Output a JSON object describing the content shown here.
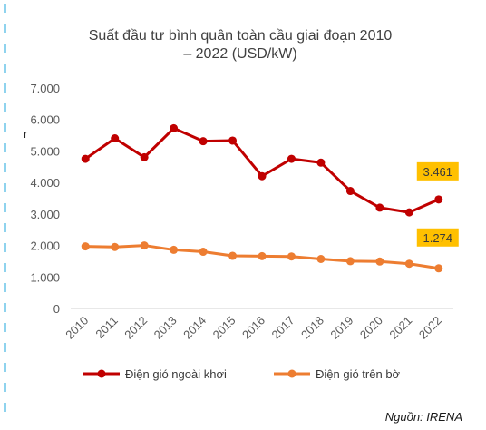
{
  "chart_data": {
    "type": "line",
    "title": "Suất đầu tư bình quân toàn cầu giai đoạn 2010\n– 2022 (USD/kW)",
    "x": [
      "2010",
      "2011",
      "2012",
      "2013",
      "2014",
      "2015",
      "2016",
      "2017",
      "2018",
      "2019",
      "2020",
      "2021",
      "2022"
    ],
    "ylim": [
      0,
      7000
    ],
    "yticks": [
      0,
      1000,
      2000,
      3000,
      4000,
      5000,
      6000,
      7000
    ],
    "ytick_labels": [
      "0",
      "1.000",
      "2.000",
      "3.000",
      "4.000",
      "5.000",
      "6.000",
      "7.000"
    ],
    "grid": false,
    "legend_position": "bottom",
    "series": [
      {
        "name": "Điện gió ngoài khơi",
        "color": "#c00000",
        "values": [
          4750,
          5400,
          4800,
          5720,
          5310,
          5330,
          4200,
          4750,
          4630,
          3730,
          3200,
          3050,
          3461
        ],
        "end_label": "3.461"
      },
      {
        "name": "Điện gió trên bờ",
        "color": "#ed7d31",
        "values": [
          1970,
          1950,
          2000,
          1860,
          1800,
          1670,
          1660,
          1650,
          1570,
          1500,
          1490,
          1420,
          1274
        ],
        "end_label": "1.274"
      }
    ]
  },
  "label_box_color": "#ffc000",
  "source_text": "Nguồn: IRENA",
  "side_mark": "r"
}
